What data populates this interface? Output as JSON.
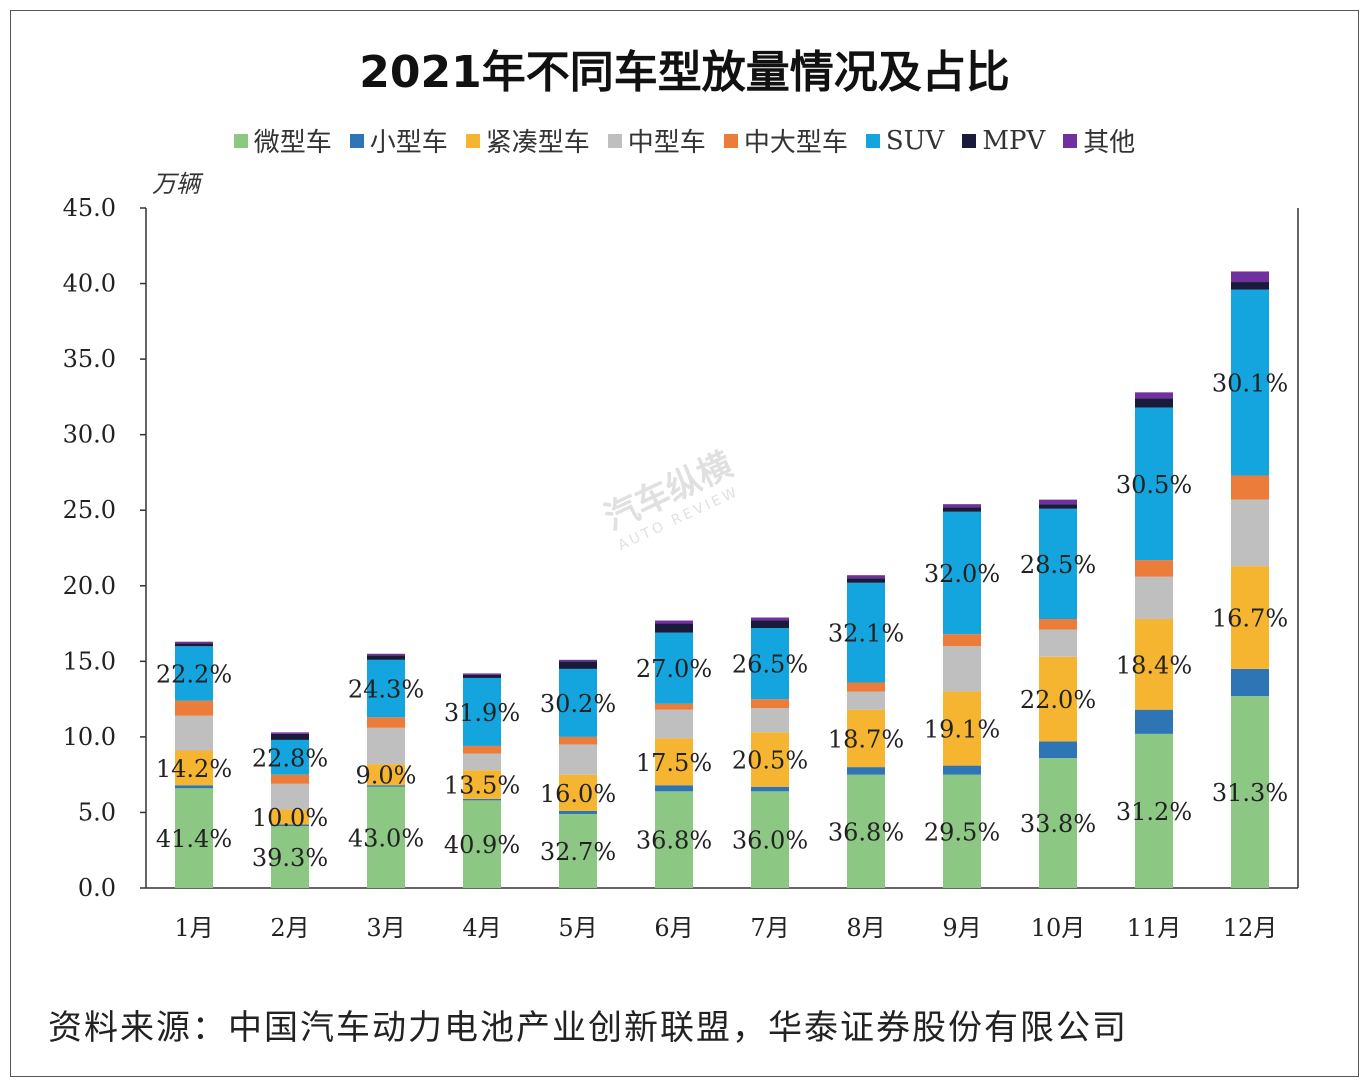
{
  "title": "2021年不同车型放量情况及占比",
  "unit_label": "万辆",
  "source": "资料来源：中国汽车动力电池产业创新联盟，华泰证券股份有限公司",
  "watermark": {
    "brand": "汽车纵横",
    "sub": "AUTO REVIEW"
  },
  "colors": {
    "微型车": "#8cc784",
    "小型车": "#2e75b6",
    "紧凑型车": "#f6b531",
    "中型车": "#bfbfbf",
    "中大型车": "#ec7c3a",
    "SUV": "#14a5de",
    "MPV": "#1a1a3a",
    "其他": "#7030a0"
  },
  "chart_data": {
    "type": "bar",
    "stacked": true,
    "title": "2021年不同车型放量情况及占比",
    "ylabel": "万辆",
    "ylim": [
      0,
      45
    ],
    "yticks": [
      "0.0",
      "5.0",
      "10.0",
      "15.0",
      "20.0",
      "25.0",
      "30.0",
      "35.0",
      "40.0",
      "45.0"
    ],
    "categories": [
      "1月",
      "2月",
      "3月",
      "4月",
      "5月",
      "6月",
      "7月",
      "8月",
      "9月",
      "10月",
      "11月",
      "12月"
    ],
    "series": [
      {
        "name": "微型车",
        "values": [
          6.6,
          4.1,
          6.7,
          5.8,
          4.9,
          6.4,
          6.4,
          7.5,
          7.5,
          8.6,
          10.2,
          12.7
        ]
      },
      {
        "name": "小型车",
        "values": [
          0.2,
          0.1,
          0.1,
          0.1,
          0.2,
          0.4,
          0.3,
          0.5,
          0.6,
          1.1,
          1.6,
          1.8
        ]
      },
      {
        "name": "紧凑型车",
        "values": [
          2.3,
          1.0,
          1.4,
          1.9,
          2.4,
          3.1,
          3.6,
          3.8,
          4.9,
          5.6,
          6.0,
          6.8
        ]
      },
      {
        "name": "中型车",
        "values": [
          2.3,
          1.7,
          2.4,
          1.1,
          2.0,
          1.9,
          1.6,
          1.2,
          3.0,
          1.8,
          2.8,
          4.4
        ]
      },
      {
        "name": "中大型车",
        "values": [
          1.0,
          0.6,
          0.7,
          0.5,
          0.5,
          0.4,
          0.6,
          0.6,
          0.8,
          0.7,
          1.1,
          1.6
        ]
      },
      {
        "name": "SUV",
        "values": [
          3.6,
          2.3,
          3.8,
          4.5,
          4.5,
          4.7,
          4.7,
          6.6,
          8.1,
          7.3,
          10.1,
          12.3
        ]
      },
      {
        "name": "MPV",
        "values": [
          0.2,
          0.4,
          0.3,
          0.2,
          0.5,
          0.6,
          0.5,
          0.3,
          0.3,
          0.3,
          0.6,
          0.5
        ]
      },
      {
        "name": "其他",
        "values": [
          0.1,
          0.1,
          0.1,
          0.1,
          0.1,
          0.2,
          0.2,
          0.2,
          0.2,
          0.3,
          0.4,
          0.7
        ]
      }
    ],
    "labels": [
      {
        "series": "微型车",
        "values": [
          "41.4%",
          "39.3%",
          "43.0%",
          "40.9%",
          "32.7%",
          "36.8%",
          "36.0%",
          "36.8%",
          "29.5%",
          "33.8%",
          "31.2%",
          "31.3%"
        ]
      },
      {
        "series": "紧凑型车",
        "values": [
          "14.2%",
          "10.0%",
          "9.0%",
          "13.5%",
          "16.0%",
          "17.5%",
          "20.5%",
          "18.7%",
          "19.1%",
          "22.0%",
          "18.4%",
          "16.7%"
        ]
      },
      {
        "series": "SUV",
        "values": [
          "22.2%",
          "22.8%",
          "24.3%",
          "31.9%",
          "30.2%",
          "27.0%",
          "26.5%",
          "32.1%",
          "32.0%",
          "28.5%",
          "30.5%",
          "30.1%"
        ]
      }
    ],
    "legend_position": "top"
  }
}
